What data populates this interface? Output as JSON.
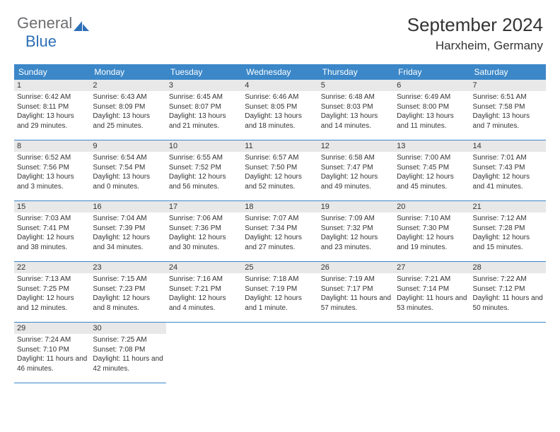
{
  "logo": {
    "gray": "General",
    "blue": "Blue"
  },
  "title": "September 2024",
  "location": "Harxheim, Germany",
  "colors": {
    "header_bg": "#3b87c8",
    "header_text": "#ffffff",
    "daynum_bg": "#e8e8e8",
    "border": "#3b87c8",
    "logo_gray": "#6d6e71",
    "logo_blue": "#2d6fb7"
  },
  "weekdays": [
    "Sunday",
    "Monday",
    "Tuesday",
    "Wednesday",
    "Thursday",
    "Friday",
    "Saturday"
  ],
  "weeks": [
    [
      {
        "n": "1",
        "sr": "6:42 AM",
        "ss": "8:11 PM",
        "dl": "13 hours and 29 minutes."
      },
      {
        "n": "2",
        "sr": "6:43 AM",
        "ss": "8:09 PM",
        "dl": "13 hours and 25 minutes."
      },
      {
        "n": "3",
        "sr": "6:45 AM",
        "ss": "8:07 PM",
        "dl": "13 hours and 21 minutes."
      },
      {
        "n": "4",
        "sr": "6:46 AM",
        "ss": "8:05 PM",
        "dl": "13 hours and 18 minutes."
      },
      {
        "n": "5",
        "sr": "6:48 AM",
        "ss": "8:03 PM",
        "dl": "13 hours and 14 minutes."
      },
      {
        "n": "6",
        "sr": "6:49 AM",
        "ss": "8:00 PM",
        "dl": "13 hours and 11 minutes."
      },
      {
        "n": "7",
        "sr": "6:51 AM",
        "ss": "7:58 PM",
        "dl": "13 hours and 7 minutes."
      }
    ],
    [
      {
        "n": "8",
        "sr": "6:52 AM",
        "ss": "7:56 PM",
        "dl": "13 hours and 3 minutes."
      },
      {
        "n": "9",
        "sr": "6:54 AM",
        "ss": "7:54 PM",
        "dl": "13 hours and 0 minutes."
      },
      {
        "n": "10",
        "sr": "6:55 AM",
        "ss": "7:52 PM",
        "dl": "12 hours and 56 minutes."
      },
      {
        "n": "11",
        "sr": "6:57 AM",
        "ss": "7:50 PM",
        "dl": "12 hours and 52 minutes."
      },
      {
        "n": "12",
        "sr": "6:58 AM",
        "ss": "7:47 PM",
        "dl": "12 hours and 49 minutes."
      },
      {
        "n": "13",
        "sr": "7:00 AM",
        "ss": "7:45 PM",
        "dl": "12 hours and 45 minutes."
      },
      {
        "n": "14",
        "sr": "7:01 AM",
        "ss": "7:43 PM",
        "dl": "12 hours and 41 minutes."
      }
    ],
    [
      {
        "n": "15",
        "sr": "7:03 AM",
        "ss": "7:41 PM",
        "dl": "12 hours and 38 minutes."
      },
      {
        "n": "16",
        "sr": "7:04 AM",
        "ss": "7:39 PM",
        "dl": "12 hours and 34 minutes."
      },
      {
        "n": "17",
        "sr": "7:06 AM",
        "ss": "7:36 PM",
        "dl": "12 hours and 30 minutes."
      },
      {
        "n": "18",
        "sr": "7:07 AM",
        "ss": "7:34 PM",
        "dl": "12 hours and 27 minutes."
      },
      {
        "n": "19",
        "sr": "7:09 AM",
        "ss": "7:32 PM",
        "dl": "12 hours and 23 minutes."
      },
      {
        "n": "20",
        "sr": "7:10 AM",
        "ss": "7:30 PM",
        "dl": "12 hours and 19 minutes."
      },
      {
        "n": "21",
        "sr": "7:12 AM",
        "ss": "7:28 PM",
        "dl": "12 hours and 15 minutes."
      }
    ],
    [
      {
        "n": "22",
        "sr": "7:13 AM",
        "ss": "7:25 PM",
        "dl": "12 hours and 12 minutes."
      },
      {
        "n": "23",
        "sr": "7:15 AM",
        "ss": "7:23 PM",
        "dl": "12 hours and 8 minutes."
      },
      {
        "n": "24",
        "sr": "7:16 AM",
        "ss": "7:21 PM",
        "dl": "12 hours and 4 minutes."
      },
      {
        "n": "25",
        "sr": "7:18 AM",
        "ss": "7:19 PM",
        "dl": "12 hours and 1 minute."
      },
      {
        "n": "26",
        "sr": "7:19 AM",
        "ss": "7:17 PM",
        "dl": "11 hours and 57 minutes."
      },
      {
        "n": "27",
        "sr": "7:21 AM",
        "ss": "7:14 PM",
        "dl": "11 hours and 53 minutes."
      },
      {
        "n": "28",
        "sr": "7:22 AM",
        "ss": "7:12 PM",
        "dl": "11 hours and 50 minutes."
      }
    ],
    [
      {
        "n": "29",
        "sr": "7:24 AM",
        "ss": "7:10 PM",
        "dl": "11 hours and 46 minutes."
      },
      {
        "n": "30",
        "sr": "7:25 AM",
        "ss": "7:08 PM",
        "dl": "11 hours and 42 minutes."
      },
      null,
      null,
      null,
      null,
      null
    ]
  ],
  "labels": {
    "sunrise": "Sunrise:",
    "sunset": "Sunset:",
    "daylight": "Daylight:"
  }
}
